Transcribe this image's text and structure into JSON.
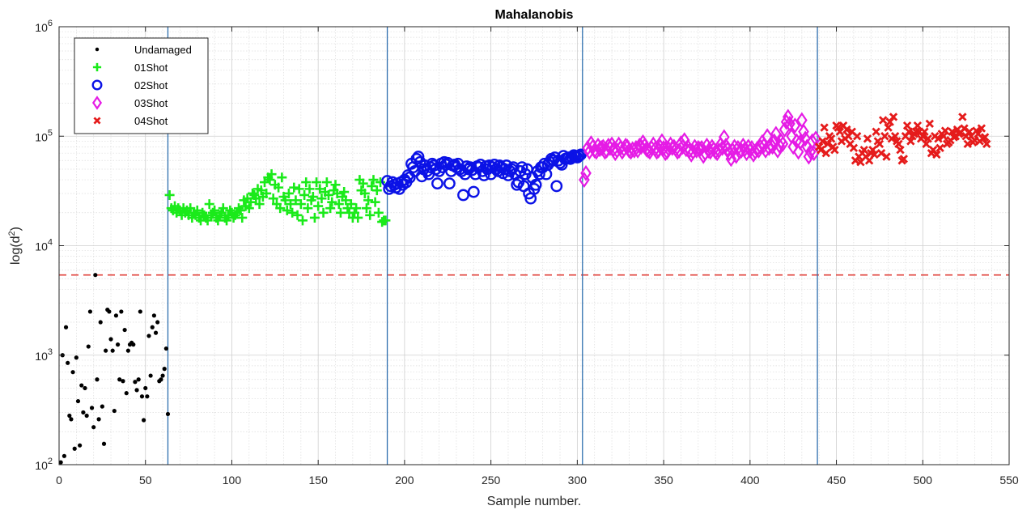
{
  "chart_data": {
    "type": "scatter",
    "title": "Mahalanobis",
    "xlabel": "Sample number.",
    "ylabel": "log(d²)",
    "ylabel_base": "log(d",
    "ylabel_sup": "2",
    "ylabel_tail": ")",
    "xlim": [
      0,
      550
    ],
    "ylim": [
      100,
      1000000
    ],
    "yscale": "log",
    "grid": true,
    "minor_grid": true,
    "legend_position": "top-left",
    "x_ticks": [
      "0",
      "50",
      "100",
      "150",
      "200",
      "250",
      "300",
      "350",
      "400",
      "450",
      "500",
      "550"
    ],
    "y_ticks": [
      {
        "base": "10",
        "exp": "2"
      },
      {
        "base": "10",
        "exp": "3"
      },
      {
        "base": "10",
        "exp": "4"
      },
      {
        "base": "10",
        "exp": "5"
      },
      {
        "base": "10",
        "exp": "6"
      }
    ],
    "threshold": {
      "y": 5400,
      "color": "#e0403a",
      "style": "dashed"
    },
    "vertical_lines": [
      {
        "x": 63
      },
      {
        "x": 190
      },
      {
        "x": 303
      },
      {
        "x": 439
      }
    ],
    "vertical_line_color": "#2f6fae",
    "series": [
      {
        "name": "Undamaged",
        "color": "#000000",
        "marker": "dot",
        "x": [
          1,
          2,
          3,
          4,
          5,
          6,
          7,
          8,
          9,
          10,
          11,
          12,
          13,
          14,
          15,
          16,
          17,
          18,
          19,
          20,
          21,
          22,
          23,
          24,
          25,
          26,
          27,
          28,
          29,
          30,
          31,
          32,
          33,
          34,
          35,
          36,
          37,
          38,
          39,
          40,
          41,
          42,
          43,
          44,
          45,
          46,
          47,
          48,
          49,
          50,
          51,
          52,
          53,
          54,
          55,
          56,
          57,
          58,
          59,
          60,
          61,
          62,
          63
        ],
        "y": [
          105,
          1000,
          120,
          1800,
          850,
          280,
          260,
          700,
          140,
          950,
          380,
          150,
          530,
          300,
          500,
          280,
          1200,
          2500,
          330,
          220,
          5400,
          600,
          260,
          2000,
          340,
          155,
          1100,
          2600,
          2500,
          1400,
          1100,
          310,
          2300,
          1250,
          600,
          2500,
          580,
          1700,
          450,
          1100,
          1250,
          1300,
          1250,
          570,
          480,
          600,
          2500,
          420,
          255,
          500,
          420,
          1500,
          650,
          1800,
          2300,
          1600,
          2000,
          580,
          600,
          650,
          750,
          1150,
          290
        ]
      },
      {
        "name": "01Shot",
        "color": "#1aea1a",
        "marker": "plus",
        "x": [
          64,
          65,
          66,
          67,
          68,
          69,
          70,
          71,
          72,
          73,
          74,
          75,
          76,
          77,
          78,
          79,
          80,
          81,
          82,
          83,
          84,
          85,
          86,
          87,
          88,
          89,
          90,
          91,
          92,
          93,
          94,
          95,
          96,
          97,
          98,
          99,
          100,
          101,
          102,
          103,
          104,
          105,
          106,
          107,
          108,
          109,
          110,
          111,
          112,
          113,
          114,
          115,
          116,
          117,
          118,
          119,
          120,
          121,
          122,
          123,
          124,
          125,
          126,
          127,
          128,
          129,
          130,
          131,
          132,
          133,
          134,
          135,
          136,
          137,
          138,
          139,
          140,
          141,
          142,
          143,
          144,
          145,
          146,
          147,
          148,
          149,
          150,
          151,
          152,
          153,
          154,
          155,
          156,
          157,
          158,
          159,
          160,
          161,
          162,
          163,
          164,
          165,
          166,
          167,
          168,
          169,
          170,
          171,
          172,
          173,
          174,
          175,
          176,
          177,
          178,
          179,
          180,
          181,
          182,
          183,
          184,
          185,
          186,
          187,
          188,
          189
        ],
        "y": [
          29000,
          22000,
          21000,
          23000,
          20000,
          22000,
          21000,
          19000,
          22000,
          20000,
          21000,
          19000,
          22000,
          18000,
          20000,
          19000,
          21000,
          18000,
          17000,
          20000,
          19000,
          18000,
          17000,
          24000,
          19000,
          20000,
          21000,
          18000,
          17000,
          19000,
          20000,
          22000,
          18000,
          17000,
          19000,
          21000,
          20000,
          18000,
          19000,
          20000,
          22000,
          21000,
          18000,
          26000,
          23000,
          27000,
          22000,
          25000,
          30000,
          29000,
          27000,
          33000,
          24000,
          32000,
          28000,
          38000,
          30000,
          42000,
          40000,
          45000,
          27000,
          36000,
          24000,
          34000,
          22000,
          42000,
          28000,
          26000,
          21000,
          30000,
          24000,
          20000,
          34000,
          26000,
          19000,
          33000,
          24000,
          17000,
          29000,
          38000,
          22000,
          33000,
          26000,
          28000,
          18000,
          38000,
          23000,
          33000,
          27000,
          20000,
          31000,
          38000,
          29000,
          22000,
          25000,
          32000,
          36000,
          30000,
          24000,
          20000,
          28000,
          31000,
          26000,
          22000,
          20000,
          24000,
          18000,
          20000,
          22000,
          18000,
          40000,
          32000,
          37000,
          30000,
          22000,
          26000,
          19000,
          35000,
          40000,
          25000,
          32000,
          20000,
          38000,
          16500,
          17000,
          17000
        ]
      },
      {
        "name": "02Shot",
        "color": "#0b12e6",
        "marker": "circle",
        "x": [
          190,
          191,
          192,
          193,
          194,
          195,
          196,
          197,
          198,
          199,
          200,
          201,
          202,
          203,
          204,
          205,
          206,
          207,
          208,
          209,
          210,
          211,
          212,
          213,
          214,
          215,
          216,
          217,
          218,
          219,
          220,
          221,
          222,
          223,
          224,
          225,
          226,
          227,
          228,
          229,
          230,
          231,
          232,
          233,
          234,
          235,
          236,
          237,
          238,
          239,
          240,
          241,
          242,
          243,
          244,
          245,
          246,
          247,
          248,
          249,
          250,
          251,
          252,
          253,
          254,
          255,
          256,
          257,
          258,
          259,
          260,
          261,
          262,
          263,
          264,
          265,
          266,
          267,
          268,
          269,
          270,
          271,
          272,
          273,
          274,
          275,
          276,
          277,
          278,
          279,
          280,
          281,
          282,
          283,
          284,
          285,
          286,
          287,
          288,
          289,
          290,
          291,
          292,
          293,
          294,
          295,
          296,
          297,
          298,
          299,
          300,
          301,
          302
        ],
        "y": [
          39000,
          33000,
          35000,
          38000,
          36000,
          34000,
          37000,
          33000,
          38000,
          36000,
          40000,
          38000,
          44000,
          42000,
          56000,
          52000,
          48000,
          62000,
          65000,
          58000,
          43000,
          50000,
          54000,
          48000,
          45000,
          52000,
          56000,
          54000,
          50000,
          37000,
          48000,
          56000,
          52000,
          58000,
          55000,
          57000,
          37000,
          48000,
          54000,
          55000,
          52000,
          56000,
          50000,
          48000,
          29000,
          45000,
          53000,
          50000,
          52000,
          49000,
          31000,
          45000,
          53000,
          52000,
          55000,
          48000,
          44000,
          53000,
          50000,
          54000,
          45000,
          52000,
          55000,
          50000,
          48000,
          54000,
          52000,
          46000,
          50000,
          54000,
          44000,
          48000,
          50000,
          52000,
          45000,
          36000,
          38000,
          48000,
          52000,
          35000,
          45000,
          50000,
          30000,
          27000,
          42000,
          33000,
          36000,
          48000,
          45000,
          52000,
          52000,
          56000,
          45000,
          55000,
          58000,
          62000,
          60000,
          64000,
          35000,
          60000,
          57000,
          55000,
          66000,
          62000,
          63000,
          64000,
          62000,
          64000,
          67000,
          66000,
          64000,
          66000,
          68000
        ]
      },
      {
        "name": "03Shot",
        "color": "#e51be5",
        "marker": "diamond",
        "x": [
          304,
          305,
          306,
          307,
          308,
          309,
          310,
          311,
          312,
          313,
          314,
          315,
          316,
          317,
          318,
          319,
          320,
          321,
          322,
          323,
          324,
          325,
          326,
          327,
          328,
          329,
          330,
          331,
          332,
          333,
          334,
          335,
          336,
          337,
          338,
          339,
          340,
          341,
          342,
          343,
          344,
          345,
          346,
          347,
          348,
          349,
          350,
          351,
          352,
          353,
          354,
          355,
          356,
          357,
          358,
          359,
          360,
          361,
          362,
          363,
          364,
          365,
          366,
          367,
          368,
          369,
          370,
          371,
          372,
          373,
          374,
          375,
          376,
          377,
          378,
          379,
          380,
          381,
          382,
          383,
          384,
          385,
          386,
          387,
          388,
          389,
          390,
          391,
          392,
          393,
          394,
          395,
          396,
          397,
          398,
          399,
          400,
          401,
          402,
          403,
          404,
          405,
          406,
          407,
          408,
          409,
          410,
          411,
          412,
          413,
          414,
          415,
          416,
          417,
          418,
          419,
          420,
          421,
          422,
          423,
          424,
          425,
          426,
          427,
          428,
          429,
          430,
          431,
          432,
          433,
          434,
          435,
          436,
          437,
          438
        ],
        "y": [
          40000,
          46000,
          78000,
          72000,
          86000,
          80000,
          74000,
          72000,
          82000,
          76000,
          78000,
          80000,
          72000,
          74000,
          82000,
          78000,
          84000,
          76000,
          70000,
          74000,
          84000,
          78000,
          72000,
          76000,
          82000,
          80000,
          74000,
          72000,
          76000,
          74000,
          78000,
          74000,
          82000,
          80000,
          88000,
          82000,
          76000,
          74000,
          72000,
          78000,
          84000,
          76000,
          72000,
          74000,
          80000,
          90000,
          78000,
          70000,
          72000,
          76000,
          84000,
          78000,
          80000,
          76000,
          72000,
          74000,
          86000,
          80000,
          92000,
          76000,
          80000,
          74000,
          68000,
          72000,
          80000,
          74000,
          78000,
          76000,
          78000,
          66000,
          70000,
          82000,
          74000,
          72000,
          80000,
          76000,
          72000,
          70000,
          74000,
          84000,
          78000,
          98000,
          82000,
          76000,
          70000,
          62000,
          74000,
          80000,
          66000,
          78000,
          72000,
          74000,
          82000,
          76000,
          70000,
          80000,
          74000,
          78000,
          68000,
          72000,
          76000,
          74000,
          80000,
          88000,
          82000,
          74000,
          100000,
          78000,
          84000,
          80000,
          90000,
          105000,
          74000,
          82000,
          90000,
          85000,
          115000,
          135000,
          150000,
          130000,
          100000,
          80000,
          125000,
          90000,
          72000,
          88000,
          140000,
          110000,
          95000,
          80000,
          65000,
          72000,
          90000,
          70000,
          95000
        ]
      },
      {
        "name": "04Shot",
        "color": "#e51b1b",
        "marker": "x",
        "x": [
          440,
          441,
          442,
          443,
          444,
          445,
          446,
          447,
          448,
          449,
          450,
          451,
          452,
          453,
          454,
          455,
          456,
          457,
          458,
          459,
          460,
          461,
          462,
          463,
          464,
          465,
          466,
          467,
          468,
          469,
          470,
          471,
          472,
          473,
          474,
          475,
          476,
          477,
          478,
          479,
          480,
          481,
          482,
          483,
          484,
          485,
          486,
          487,
          488,
          489,
          490,
          491,
          492,
          493,
          494,
          495,
          496,
          497,
          498,
          499,
          500,
          501,
          502,
          503,
          504,
          505,
          506,
          507,
          508,
          509,
          510,
          511,
          512,
          513,
          514,
          515,
          516,
          517,
          518,
          519,
          520,
          521,
          522,
          523,
          524,
          525,
          526,
          527,
          528,
          529,
          530,
          531,
          532,
          533,
          534,
          535,
          536,
          537
        ],
        "y": [
          80000,
          75000,
          90000,
          120000,
          70000,
          85000,
          100000,
          95000,
          80000,
          75000,
          125000,
          120000,
          110000,
          90000,
          125000,
          95000,
          115000,
          100000,
          85000,
          110000,
          78000,
          60000,
          100000,
          65000,
          58000,
          70000,
          75000,
          65000,
          95000,
          60000,
          70000,
          75000,
          68000,
          110000,
          90000,
          85000,
          70000,
          140000,
          100000,
          65000,
          120000,
          135000,
          95000,
          150000,
          100000,
          90000,
          85000,
          75000,
          60000,
          62000,
          100000,
          125000,
          110000,
          90000,
          100000,
          105000,
          110000,
          125000,
          110000,
          95000,
          100000,
          110000,
          85000,
          95000,
          130000,
          70000,
          75000,
          100000,
          68000,
          95000,
          78000,
          105000,
          100000,
          112000,
          85000,
          88000,
          92000,
          110000,
          98000,
          100000,
          115000,
          105000,
          108000,
          150000,
          118000,
          100000,
          85000,
          110000,
          100000,
          88000,
          92000,
          112000,
          105000,
          90000,
          118000,
          95000,
          98000,
          85000
        ]
      }
    ]
  }
}
